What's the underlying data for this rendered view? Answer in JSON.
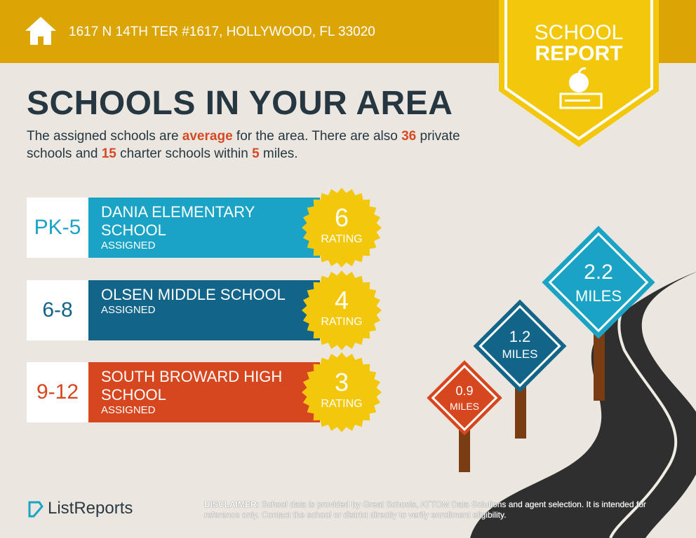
{
  "header": {
    "address": "1617 N 14TH TER #1617, HOLLYWOOD, FL 33020",
    "icon": "home-icon"
  },
  "badge": {
    "line1": "SCHOOL",
    "line2": "REPORT",
    "icon": "apple-books-icon"
  },
  "title": "SCHOOLS IN YOUR AREA",
  "intro": {
    "p1": "The assigned schools are ",
    "quality": "average",
    "p2": " for the area. There are also ",
    "private_count": "36",
    "p3": " private schools and ",
    "charter_count": "15",
    "p4": " charter schools within ",
    "miles": "5",
    "p5": " miles."
  },
  "schools": [
    {
      "grades": "PK-5",
      "name": "DANIA ELEMENTARY SCHOOL",
      "status": "ASSIGNED",
      "rating": "6",
      "rating_label": "RATING",
      "color": "#1ba3c6",
      "grade_color": "#1ba3c6"
    },
    {
      "grades": "6-8",
      "name": "OLSEN MIDDLE SCHOOL",
      "status": "ASSIGNED",
      "rating": "4",
      "rating_label": "RATING",
      "color": "#136489",
      "grade_color": "#136489"
    },
    {
      "grades": "9-12",
      "name": "SOUTH BROWARD HIGH SCHOOL",
      "status": "ASSIGNED",
      "rating": "3",
      "rating_label": "RATING",
      "color": "#d6461f",
      "grade_color": "#d6461f"
    }
  ],
  "signs": [
    {
      "distance": "0.9",
      "unit": "MILES",
      "color": "#d6461f"
    },
    {
      "distance": "1.2",
      "unit": "MILES",
      "color": "#136489"
    },
    {
      "distance": "2.2",
      "unit": "MILES",
      "color": "#1ba3c6"
    }
  ],
  "footer": {
    "brand": "ListReports",
    "disclaimer_label": "DISCLAIMER:",
    "disclaimer": " School data is provided by Great Schools, ATTOM Data Solutions and agent selection. It is intended for reference only. Contact the school or district directly to verify enrollment eligibility."
  },
  "colors": {
    "header": "#dca506",
    "badge": "#f3c80c",
    "star": "#f3c80c",
    "title": "#263741",
    "highlight": "#d44a24"
  }
}
